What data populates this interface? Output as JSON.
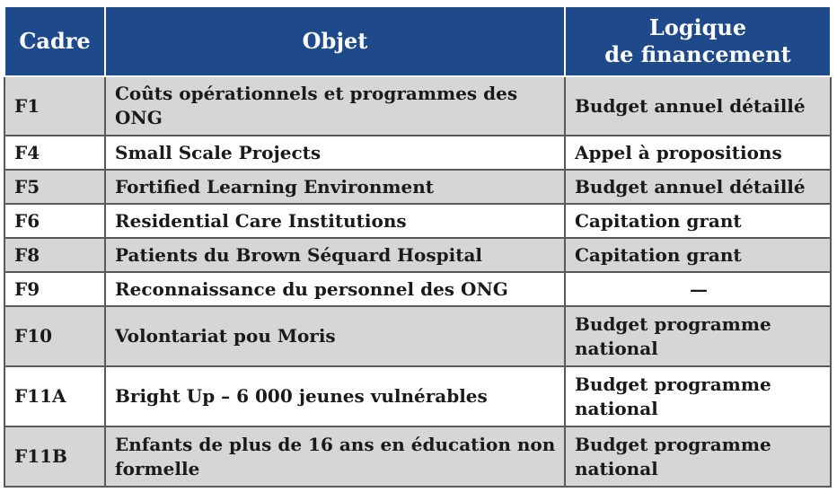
{
  "header": {
    "col1": "Cadre",
    "col2": "Objet",
    "col3_line1": "Logique",
    "col3_line2": "de financement"
  },
  "rows": [
    {
      "cadre": "F1",
      "objet": "Coûts opérationnels et programmes des ONG",
      "logique": "Budget annuel détaillé"
    },
    {
      "cadre": "F4",
      "objet": "Small Scale Projects",
      "logique": "Appel à propositions"
    },
    {
      "cadre": "F5",
      "objet": "Fortified Learning Environment",
      "logique": "Budget annuel détaillé"
    },
    {
      "cadre": "F6",
      "objet": "Residential Care Institutions",
      "logique": "Capitation grant"
    },
    {
      "cadre": "F8",
      "objet": "Patients du Brown Séquard Hospital",
      "logique": "Capitation grant"
    },
    {
      "cadre": "F9",
      "objet": "Reconnaissance du personnel des ONG",
      "logique": "—"
    },
    {
      "cadre": "F10",
      "objet": "Volontariat pou Moris",
      "logique": "Budget programme national"
    },
    {
      "cadre": "F11A",
      "objet": "Bright Up – 6 000 jeunes vulnérables",
      "logique": "Budget programme national"
    },
    {
      "cadre": "F11B",
      "objet": "Enfants de plus de 16 ans en éducation non formelle",
      "logique": "Budget programme national"
    }
  ],
  "colors": {
    "header_bg": "#1e4a8c",
    "row_gray": "#d6d6d6",
    "row_white": "#ffffff"
  }
}
